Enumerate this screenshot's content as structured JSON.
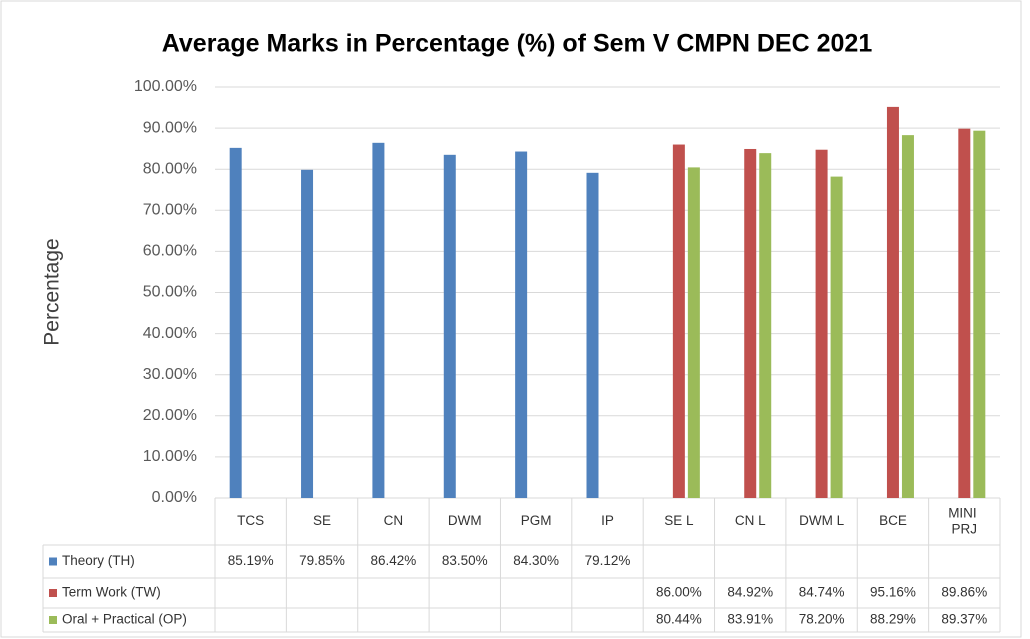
{
  "chart_data": {
    "type": "bar",
    "title": "Average Marks in Percentage (%) of Sem V CMPN DEC 2021",
    "y_label": "Percentage",
    "categories": [
      "TCS",
      "SE",
      "CN",
      "DWM",
      "PGM",
      "IP",
      "SE L",
      "CN L",
      "DWM L",
      "BCE",
      "MINI PRJ"
    ],
    "series": [
      {
        "name": "Theory (TH)",
        "color": "#4f81bd",
        "values": [
          85.19,
          79.85,
          86.42,
          83.5,
          84.3,
          79.12,
          null,
          null,
          null,
          null,
          null
        ],
        "value_labels": [
          "85.19%",
          "79.85%",
          "86.42%",
          "83.50%",
          "84.30%",
          "79.12%",
          null,
          null,
          null,
          null,
          null
        ]
      },
      {
        "name": "Term Work (TW)",
        "color": "#c0504d",
        "values": [
          null,
          null,
          null,
          null,
          null,
          null,
          86.0,
          84.92,
          84.74,
          95.16,
          89.86
        ],
        "value_labels": [
          null,
          null,
          null,
          null,
          null,
          null,
          "86.00%",
          "84.92%",
          "84.74%",
          "95.16%",
          "89.86%"
        ]
      },
      {
        "name": "Oral + Practical (OP)",
        "color": "#9bbb59",
        "values": [
          null,
          null,
          null,
          null,
          null,
          null,
          80.44,
          83.91,
          78.2,
          88.29,
          89.37
        ],
        "value_labels": [
          null,
          null,
          null,
          null,
          null,
          null,
          "80.44%",
          "83.91%",
          "78.20%",
          "88.29%",
          "89.37%"
        ]
      }
    ],
    "ylim": [
      0,
      100
    ],
    "yticks": [
      {
        "value": 0,
        "label": "0.00%"
      },
      {
        "value": 10,
        "label": "10.00%"
      },
      {
        "value": 20,
        "label": "20.00%"
      },
      {
        "value": 30,
        "label": "30.00%"
      },
      {
        "value": 40,
        "label": "40.00%"
      },
      {
        "value": 50,
        "label": "50.00%"
      },
      {
        "value": 60,
        "label": "60.00%"
      },
      {
        "value": 70,
        "label": "70.00%"
      },
      {
        "value": 80,
        "label": "80.00%"
      },
      {
        "value": 90,
        "label": "90.00%"
      },
      {
        "value": 100,
        "label": "100.00%"
      }
    ],
    "grid": true
  }
}
